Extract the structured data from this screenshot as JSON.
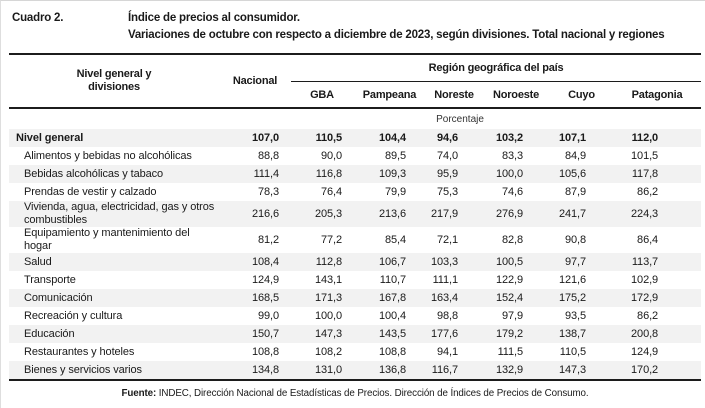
{
  "title": {
    "label": "Cuadro 2.",
    "line1": "Índice de precios al consumidor.",
    "line2": "Variaciones de octubre con respecto a diciembre de 2023, según divisiones. Total nacional y regiones"
  },
  "table": {
    "col_header_main": "Nivel general y divisiones",
    "col_header_national": "Nacional",
    "region_group_header": "Región geográfica del país",
    "region_columns": [
      "GBA",
      "Pampeana",
      "Noreste",
      "Noroeste",
      "Cuyo",
      "Patagonia"
    ],
    "unit_row": "Porcentaje",
    "value_columns": [
      "Nacional",
      "GBA",
      "Pampeana",
      "Noreste",
      "Noroeste",
      "Cuyo",
      "Patagonia"
    ],
    "rows": [
      {
        "label": "Nivel general",
        "bold": true,
        "values": [
          "107,0",
          "110,5",
          "104,4",
          "94,6",
          "103,2",
          "107,1",
          "112,0"
        ]
      },
      {
        "label": "Alimentos y bebidas no alcohólicas",
        "bold": false,
        "values": [
          "88,8",
          "90,0",
          "89,5",
          "74,0",
          "83,3",
          "84,9",
          "101,5"
        ]
      },
      {
        "label": "Bebidas alcohólicas y tabaco",
        "bold": false,
        "values": [
          "111,4",
          "116,8",
          "109,3",
          "95,9",
          "100,0",
          "105,6",
          "117,8"
        ]
      },
      {
        "label": "Prendas de vestir y calzado",
        "bold": false,
        "values": [
          "78,3",
          "76,4",
          "79,9",
          "75,3",
          "74,6",
          "87,9",
          "86,2"
        ]
      },
      {
        "label": "Vivienda, agua, electricidad, gas y otros combustibles",
        "bold": false,
        "values": [
          "216,6",
          "205,3",
          "213,6",
          "217,9",
          "276,9",
          "241,7",
          "224,3"
        ]
      },
      {
        "label": "Equipamiento y mantenimiento del hogar",
        "bold": false,
        "values": [
          "81,2",
          "77,2",
          "85,4",
          "72,1",
          "82,8",
          "90,8",
          "86,4"
        ]
      },
      {
        "label": "Salud",
        "bold": false,
        "values": [
          "108,4",
          "112,8",
          "106,7",
          "103,3",
          "100,5",
          "97,7",
          "113,7"
        ]
      },
      {
        "label": "Transporte",
        "bold": false,
        "values": [
          "124,9",
          "143,1",
          "110,7",
          "111,1",
          "122,9",
          "121,6",
          "102,9"
        ]
      },
      {
        "label": "Comunicación",
        "bold": false,
        "values": [
          "168,5",
          "171,3",
          "167,8",
          "163,4",
          "152,4",
          "175,2",
          "172,9"
        ]
      },
      {
        "label": "Recreación y cultura",
        "bold": false,
        "values": [
          "99,0",
          "100,0",
          "100,4",
          "98,8",
          "97,9",
          "93,5",
          "86,2"
        ]
      },
      {
        "label": "Educación",
        "bold": false,
        "values": [
          "150,7",
          "147,3",
          "143,5",
          "177,6",
          "179,2",
          "138,7",
          "200,8"
        ]
      },
      {
        "label": "Restaurantes y hoteles",
        "bold": false,
        "values": [
          "108,8",
          "108,2",
          "108,8",
          "94,1",
          "111,5",
          "110,5",
          "124,9"
        ]
      },
      {
        "label": "Bienes y servicios varios",
        "bold": false,
        "values": [
          "134,8",
          "131,0",
          "136,8",
          "116,7",
          "132,9",
          "147,3",
          "170,2"
        ]
      }
    ]
  },
  "footer": {
    "source_label": "Fuente:",
    "source_text": " INDEC, Dirección Nacional de Estadísticas de Precios. Dirección de Índices de Precios de Consumo."
  },
  "colors": {
    "text": "#1a1a1a",
    "rule": "#1c1c1c",
    "zebra_row": "#f2f2f2",
    "page_edge": "#d6d6d6"
  }
}
